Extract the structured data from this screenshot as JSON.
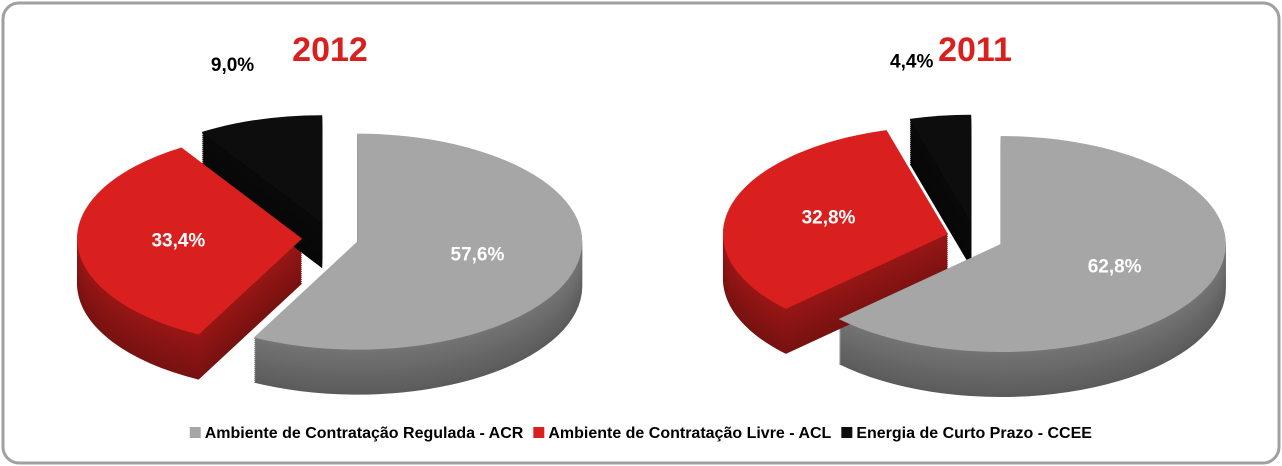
{
  "chart_data": [
    {
      "type": "pie",
      "title": "2012",
      "categories": [
        "Ambiente de Contratação Regulada - ACR",
        "Ambiente de Contratação Livre - ACL",
        "Energia de Curto Prazo - CCEE"
      ],
      "values": [
        57.6,
        33.4,
        9.0
      ],
      "value_labels": [
        "57,6%",
        "33,4%",
        "9,0%"
      ],
      "colors": [
        "#a6a6a6",
        "#d9201f",
        "#0d0d0d"
      ]
    },
    {
      "type": "pie",
      "title": "2011",
      "categories": [
        "Ambiente de Contratação Regulada - ACR",
        "Ambiente de Contratação Livre - ACL",
        "Energia de Curto Prazo - CCEE"
      ],
      "values": [
        62.8,
        32.8,
        4.4
      ],
      "value_labels": [
        "62,8%",
        "32,8%",
        "4,4%"
      ],
      "colors": [
        "#a6a6a6",
        "#d9201f",
        "#0d0d0d"
      ]
    }
  ]
}
